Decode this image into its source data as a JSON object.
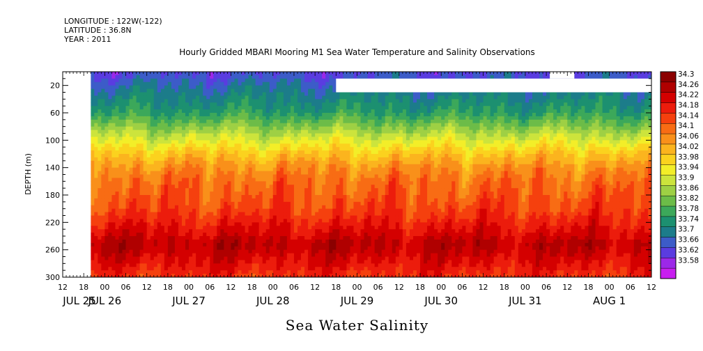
{
  "header": {
    "longitude": "LONGITUDE : 122W(-122)",
    "latitude": "LATITUDE : 36.8N",
    "year": "YEAR : 2011"
  },
  "chart_data": {
    "type": "heatmap",
    "title": "Hourly Gridded MBARI Mooring M1 Sea Water Temperature and Salinity Observations",
    "xlabel": "Sea Water Salinity",
    "ylabel": "DEPTH (m)",
    "x_unit": "hours since JUL 25 00",
    "xlim": [
      12,
      180
    ],
    "data_xlim": [
      20,
      180
    ],
    "ylim": [
      0,
      300
    ],
    "y_reversed": true,
    "y_ticks": [
      20,
      60,
      100,
      140,
      180,
      220,
      260,
      300
    ],
    "x_hour_ticks": [
      "12",
      "18",
      "00",
      "06",
      "12",
      "18",
      "00",
      "06",
      "12",
      "18",
      "00",
      "06",
      "12",
      "18",
      "00",
      "06",
      "12",
      "18",
      "00",
      "06",
      "12",
      "18",
      "00",
      "06",
      "12",
      "18",
      "00",
      "06",
      "12"
    ],
    "x_date_labels": [
      {
        "label": "JUL 25",
        "day": 0
      },
      {
        "label": "JUL 26",
        "day": 1
      },
      {
        "label": "JUL 27",
        "day": 2
      },
      {
        "label": "JUL 28",
        "day": 3
      },
      {
        "label": "JUL 29",
        "day": 4
      },
      {
        "label": "JUL 30",
        "day": 5
      },
      {
        "label": "JUL 31",
        "day": 6
      },
      {
        "label": "AUG  1",
        "day": 7
      }
    ],
    "colorbar": {
      "levels": [
        "34.3",
        "34.26",
        "34.22",
        "34.18",
        "34.14",
        "34.1",
        "34.06",
        "34.02",
        "33.98",
        "33.94",
        "33.9",
        "33.86",
        "33.82",
        "33.78",
        "33.74",
        "33.7",
        "33.66",
        "33.62",
        "33.58"
      ],
      "colors": [
        "#8b0000",
        "#b00000",
        "#d40000",
        "#ec1c0c",
        "#f5400e",
        "#f86c14",
        "#f9901a",
        "#fbb41e",
        "#fbd21e",
        "#f3ee28",
        "#cce43c",
        "#9ed044",
        "#6cbc48",
        "#3ca85a",
        "#1c9070",
        "#1c7c8a",
        "#3c5cc8",
        "#5a3ce0",
        "#9c28e8",
        "#c81ef0"
      ]
    },
    "missing_regions": [
      {
        "x": [
          12,
          20
        ],
        "depth": [
          0,
          300
        ]
      },
      {
        "x": [
          90,
          180
        ],
        "depth": [
          10,
          30
        ]
      },
      {
        "x": [
          151,
          158
        ],
        "depth": [
          0,
          10
        ]
      }
    ],
    "profile": [
      {
        "depth": 5,
        "salinity": 33.66
      },
      {
        "depth": 20,
        "salinity": 33.7
      },
      {
        "depth": 40,
        "salinity": 33.74
      },
      {
        "depth": 60,
        "salinity": 33.78
      },
      {
        "depth": 80,
        "salinity": 33.86
      },
      {
        "depth": 100,
        "salinity": 33.94
      },
      {
        "depth": 120,
        "salinity": 34.02
      },
      {
        "depth": 140,
        "salinity": 34.08
      },
      {
        "depth": 160,
        "salinity": 34.12
      },
      {
        "depth": 180,
        "salinity": 34.14
      },
      {
        "depth": 200,
        "salinity": 34.16
      },
      {
        "depth": 220,
        "salinity": 34.2
      },
      {
        "depth": 240,
        "salinity": 34.24
      },
      {
        "depth": 250,
        "salinity": 34.27
      },
      {
        "depth": 260,
        "salinity": 34.26
      },
      {
        "depth": 280,
        "salinity": 34.22
      },
      {
        "depth": 300,
        "salinity": 34.18
      }
    ]
  }
}
